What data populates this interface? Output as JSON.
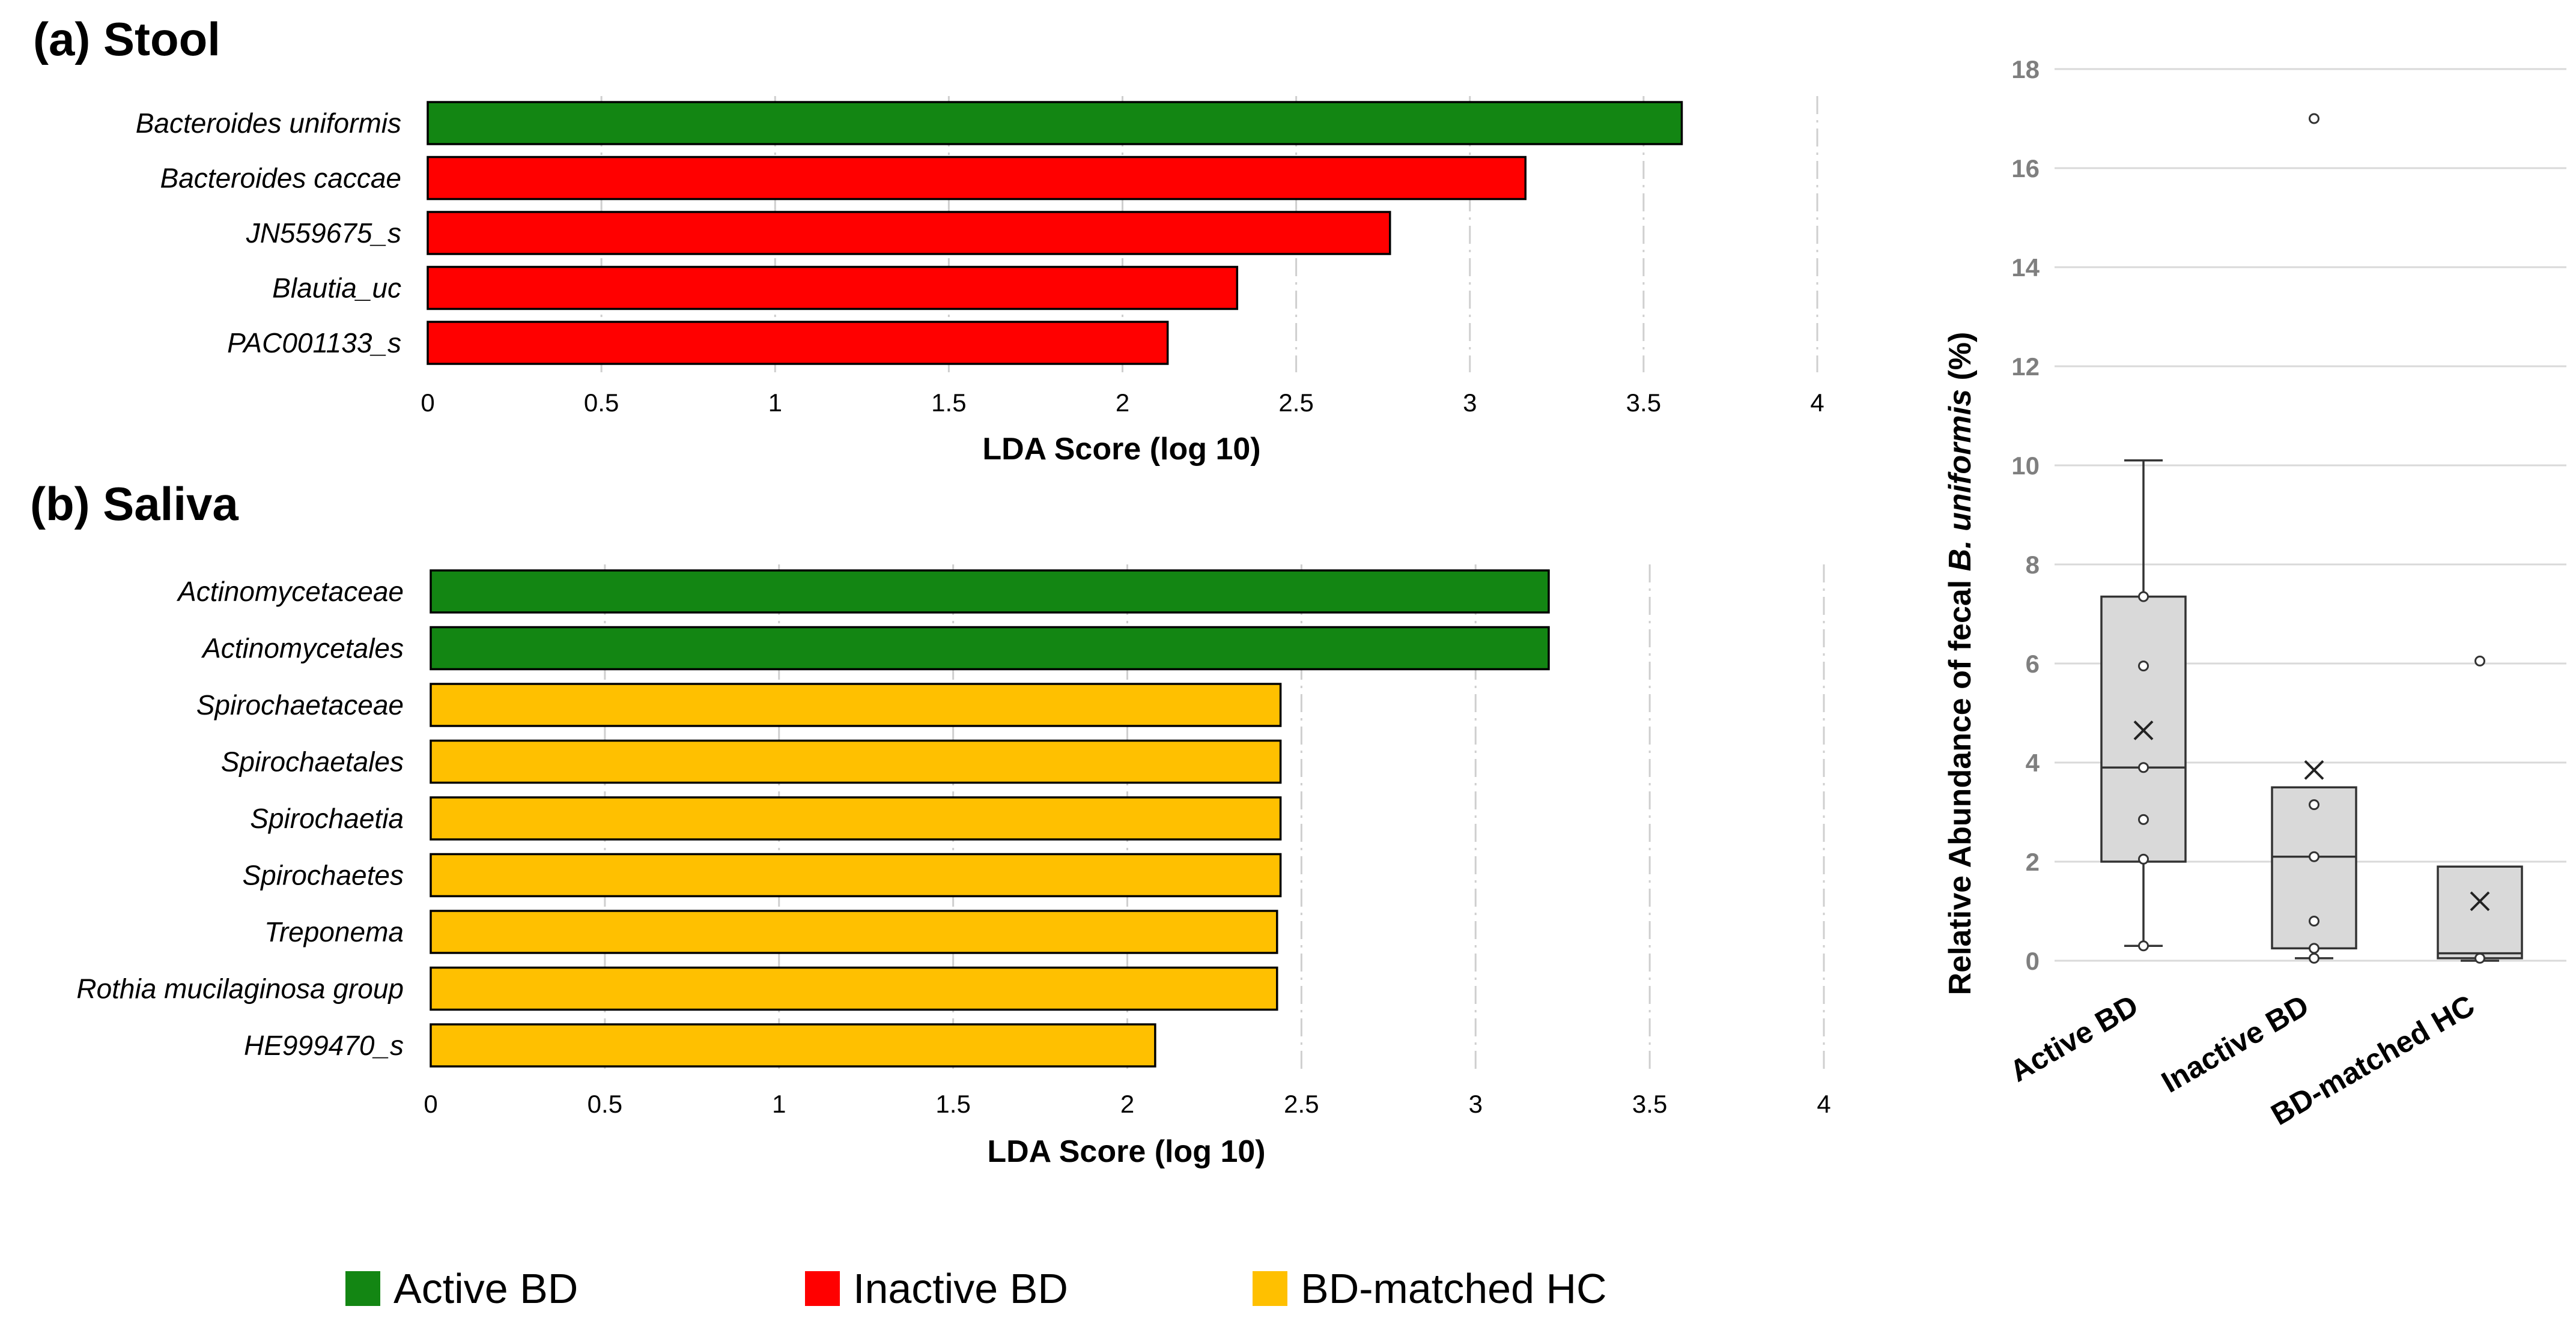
{
  "colors": {
    "Active BD": "#138613",
    "Inactive BD": "#ff0000",
    "BD-matched HC": "#ffc000",
    "box_fill": "#d9d9d9"
  },
  "legend": {
    "items": [
      {
        "label": "Active BD",
        "color_key": "Active BD"
      },
      {
        "label": "Inactive BD",
        "color_key": "Inactive BD"
      },
      {
        "label": "BD-matched HC",
        "color_key": "BD-matched HC"
      }
    ]
  },
  "chart_data": [
    {
      "type": "bar",
      "orientation": "horizontal",
      "title": "(a) Stool",
      "xlabel": "LDA Score (log 10)",
      "xlim": [
        0,
        4
      ],
      "xticks": [
        "0",
        "0.5",
        "1",
        "1.5",
        "2",
        "2.5",
        "3",
        "3.5",
        "4"
      ],
      "categories": [
        "Bacteroides uniformis",
        "Bacteroides caccae",
        "JN559675_s",
        "Blautia_uc",
        "PAC001133_s"
      ],
      "values": [
        3.61,
        3.16,
        2.77,
        2.33,
        2.13
      ],
      "groups": [
        "Active BD",
        "Inactive BD",
        "Inactive BD",
        "Inactive BD",
        "Inactive BD"
      ]
    },
    {
      "type": "bar",
      "orientation": "horizontal",
      "title": "(b) Saliva",
      "xlabel": "LDA Score (log 10)",
      "xlim": [
        0,
        4
      ],
      "xticks": [
        "0",
        "0.5",
        "1",
        "1.5",
        "2",
        "2.5",
        "3",
        "3.5",
        "4"
      ],
      "categories": [
        "Actinomycetaceae",
        "Actinomycetales",
        "Spirochaetaceae",
        "Spirochaetales",
        "Spirochaetia",
        "Spirochaetes",
        "Treponema",
        "Rothia mucilaginosa group",
        "HE999470_s"
      ],
      "values": [
        3.21,
        3.21,
        2.44,
        2.44,
        2.44,
        2.44,
        2.43,
        2.43,
        2.08
      ],
      "groups": [
        "Active BD",
        "Active BD",
        "BD-matched HC",
        "BD-matched HC",
        "BD-matched HC",
        "BD-matched HC",
        "BD-matched HC",
        "BD-matched HC",
        "BD-matched HC"
      ]
    },
    {
      "type": "box",
      "ylabel_prefix": "Relative Abundance of fecal ",
      "ylabel_italic": "B. uniformis",
      "ylabel_suffix": " (%)",
      "ylim": [
        0,
        18
      ],
      "yticks": [
        "0",
        "2",
        "4",
        "6",
        "8",
        "10",
        "12",
        "14",
        "16",
        "18"
      ],
      "categories": [
        "Active BD",
        "Inactive BD",
        "BD-matched HC"
      ],
      "boxes": [
        {
          "min": 0.3,
          "q1": 2.0,
          "median": 3.9,
          "q3": 7.35,
          "max": 10.1,
          "mean": 4.65,
          "points": [
            0.3,
            2.05,
            2.85,
            3.9,
            5.95,
            7.35
          ]
        },
        {
          "min": 0.05,
          "q1": 0.25,
          "median": 2.1,
          "q3": 3.5,
          "max": 3.5,
          "mean": 3.85,
          "points": [
            0.05,
            0.25,
            0.8,
            2.1,
            3.15,
            17.0
          ]
        },
        {
          "min": 0.0,
          "q1": 0.05,
          "median": 0.15,
          "q3": 1.9,
          "max": 1.9,
          "mean": 1.2,
          "points": [
            0.05,
            6.05
          ]
        }
      ]
    }
  ]
}
